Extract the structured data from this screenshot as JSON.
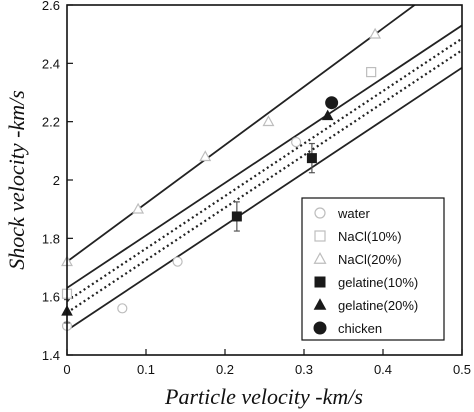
{
  "chart_data": {
    "type": "scatter",
    "xlabel": "Particle velocity -km/s",
    "ylabel": "Shock velocity -km/s",
    "xlim": [
      0,
      0.5
    ],
    "ylim": [
      1.4,
      2.6
    ],
    "xticks": [
      {
        "value": 0,
        "label": "0"
      },
      {
        "value": 0.1,
        "label": "0.1"
      },
      {
        "value": 0.2,
        "label": "0.2"
      },
      {
        "value": 0.3,
        "label": "0.3"
      },
      {
        "value": 0.4,
        "label": "0.4"
      },
      {
        "value": 0.5,
        "label": "0.5"
      }
    ],
    "yticks": [
      {
        "value": 1.4,
        "label": "1.4"
      },
      {
        "value": 1.6,
        "label": "1.6"
      },
      {
        "value": 1.8,
        "label": "1.8"
      },
      {
        "value": 2,
        "label": "2"
      },
      {
        "value": 2.2,
        "label": "2.2"
      },
      {
        "value": 2.4,
        "label": "2.4"
      },
      {
        "value": 2.6,
        "label": "2.6"
      }
    ],
    "grid": false,
    "legend_position": "bottom-right",
    "series": [
      {
        "name": "water",
        "marker": "circle-open",
        "points": [
          [
            0.0,
            1.5
          ],
          [
            0.07,
            1.56
          ],
          [
            0.14,
            1.72
          ],
          [
            0.29,
            2.13
          ]
        ]
      },
      {
        "name": "NaCl(10%)",
        "marker": "square-open",
        "points": [
          [
            0.0,
            1.61
          ],
          [
            0.385,
            2.37
          ]
        ]
      },
      {
        "name": "NaCl(20%)",
        "marker": "triangle-open",
        "points": [
          [
            0.0,
            1.72
          ],
          [
            0.09,
            1.9
          ],
          [
            0.175,
            2.08
          ],
          [
            0.255,
            2.2
          ],
          [
            0.39,
            2.5
          ]
        ]
      },
      {
        "name": "gelatine(10%)",
        "marker": "square-filled",
        "points": [
          [
            0.215,
            1.875,
            0.05
          ],
          [
            0.31,
            2.075,
            0.05
          ]
        ]
      },
      {
        "name": "gelatine(20%)",
        "marker": "triangle-filled",
        "points": [
          [
            0.0,
            1.55,
            0.04
          ],
          [
            0.33,
            2.22,
            0
          ]
        ]
      },
      {
        "name": "chicken",
        "marker": "circle-filled",
        "points": [
          [
            0.335,
            2.265,
            0
          ]
        ]
      }
    ],
    "fit_lines": [
      {
        "style": "solid",
        "intercept": 1.72,
        "slope": 2.0
      },
      {
        "style": "solid",
        "intercept": 1.63,
        "slope": 1.8
      },
      {
        "style": "dotted",
        "intercept": 1.585,
        "slope": 1.8
      },
      {
        "style": "dotted",
        "intercept": 1.545,
        "slope": 1.8
      },
      {
        "style": "solid",
        "intercept": 1.485,
        "slope": 1.8
      }
    ]
  }
}
